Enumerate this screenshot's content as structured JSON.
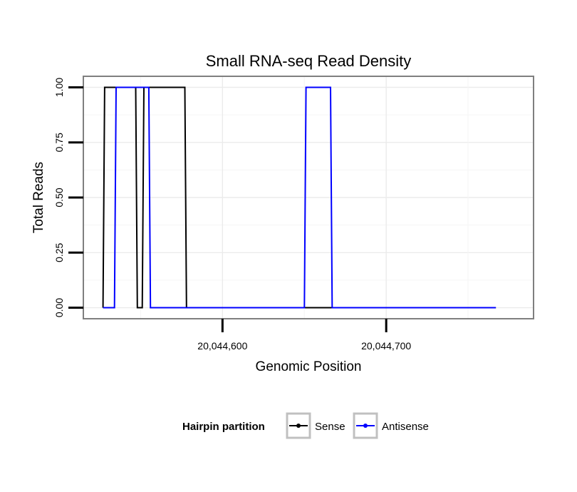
{
  "chart_data": {
    "type": "line",
    "title": "Small RNA-seq Read Density",
    "xlabel": "Genomic Position",
    "ylabel": "Total Reads",
    "xlim": [
      20044515,
      20044790
    ],
    "ylim": [
      -0.05,
      1.05
    ],
    "x_ticks": [
      20044600,
      20044700
    ],
    "x_tick_labels": [
      "20,044,600",
      "20,044,700"
    ],
    "y_ticks": [
      0,
      0.25,
      0.5,
      0.75,
      1
    ],
    "y_tick_labels": [
      "0.00",
      "0.25",
      "0.50",
      "0.75",
      "1.00"
    ],
    "grid": true,
    "legend": {
      "title": "Hairpin partition",
      "position": "bottom"
    },
    "series": [
      {
        "name": "Sense",
        "color": "#000000",
        "x": [
          20044527,
          20044528,
          20044529,
          20044547,
          20044548,
          20044551,
          20044552,
          20044577,
          20044578,
          20044767
        ],
        "y": [
          0,
          1,
          1,
          1,
          0,
          0,
          1,
          1,
          0,
          0
        ]
      },
      {
        "name": "Antisense",
        "color": "#0000ff",
        "x": [
          20044527,
          20044534,
          20044535,
          20044541,
          20044542,
          20044543,
          20044544,
          20044555,
          20044556,
          20044650,
          20044651,
          20044666,
          20044667,
          20044767
        ],
        "y": [
          0,
          0,
          1,
          1,
          1,
          1,
          1,
          1,
          0,
          0,
          1,
          1,
          0,
          0
        ]
      }
    ]
  }
}
